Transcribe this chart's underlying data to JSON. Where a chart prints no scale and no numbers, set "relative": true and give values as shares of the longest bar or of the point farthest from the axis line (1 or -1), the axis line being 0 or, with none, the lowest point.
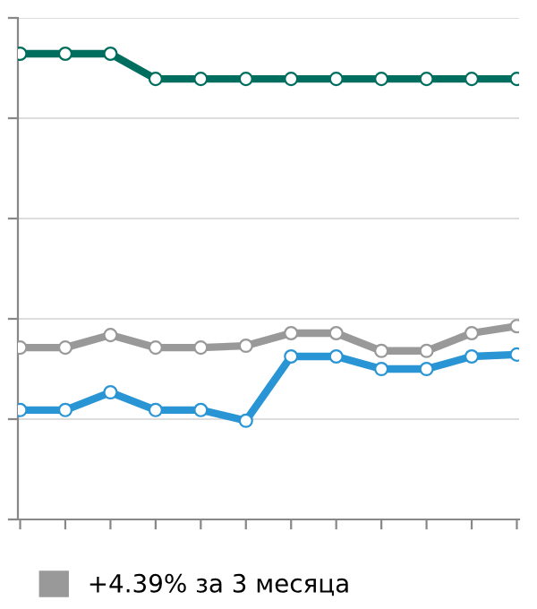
{
  "chart_data": {
    "type": "line",
    "relative": true,
    "categories": [
      null,
      null,
      null,
      null,
      null,
      null,
      null,
      null,
      null,
      null,
      null,
      null
    ],
    "series": [
      {
        "color": "#006e5f",
        "values": [
          1,
          1,
          1,
          0.946,
          0.946,
          0.946,
          0.946,
          0.946,
          0.946,
          0.946,
          0.946,
          0.946
        ]
      },
      {
        "name": "+4.39% за 3 месяца",
        "color": "#999999",
        "values": [
          0.369,
          0.369,
          0.396,
          0.369,
          0.369,
          0.373,
          0.4,
          0.4,
          0.362,
          0.362,
          0.4,
          0.415
        ]
      },
      {
        "color": "#2a95d5",
        "values": [
          0.235,
          0.235,
          0.273,
          0.235,
          0.235,
          0.212,
          0.35,
          0.35,
          0.323,
          0.323,
          0.35,
          0.354
        ]
      }
    ],
    "grid": "y",
    "legend": "bottom",
    "marker": "circle",
    "line_style": "solid",
    "tick_labels": false
  }
}
